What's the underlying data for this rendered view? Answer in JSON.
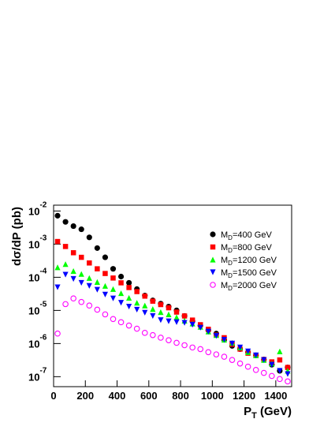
{
  "chart_data": {
    "type": "scatter",
    "ylabel": "dσ/dP (pb)",
    "xlabel": "PT (GeV)",
    "xlim": [
      0,
      1500
    ],
    "xticks": [
      0,
      200,
      400,
      600,
      800,
      1000,
      1200,
      1400
    ],
    "ylim": [
      5e-08,
      0.015
    ],
    "log_y": true,
    "yticks": [
      {
        "value": 0.01,
        "label": "10-2"
      },
      {
        "value": 0.001,
        "label": "10-3"
      },
      {
        "value": 0.0001,
        "label": "10-4"
      },
      {
        "value": 1e-05,
        "label": "10-5"
      },
      {
        "value": 1e-06,
        "label": "10-6"
      },
      {
        "value": 1e-07,
        "label": "10-7"
      }
    ],
    "legend": "upper right",
    "x": [
      25,
      75,
      125,
      175,
      225,
      275,
      325,
      375,
      425,
      475,
      525,
      575,
      625,
      675,
      725,
      775,
      825,
      875,
      925,
      975,
      1025,
      1075,
      1125,
      1175,
      1225,
      1275,
      1325,
      1375,
      1425,
      1475
    ],
    "series": [
      {
        "name": "MD=400 GeV",
        "color": "#000000",
        "marker": "circle",
        "values": [
          0.0072,
          0.0047,
          0.0035,
          0.0028,
          0.0016,
          0.00076,
          0.0004,
          0.00018,
          0.000105,
          6.8e-05,
          4.4e-05,
          2.8e-05,
          2e-05,
          1.6e-05,
          1.3e-05,
          1e-05,
          6.8e-06,
          4.7e-06,
          3.5e-06,
          2.5e-06,
          2e-06,
          1.3e-06,
          8.5e-07,
          6.8e-07,
          5.5e-07,
          4.4e-07,
          3.3e-07,
          2.3e-07,
          1.5e-07,
          1.9e-07
        ]
      },
      {
        "name": "MD=800 GeV",
        "color": "#ff0000",
        "marker": "square",
        "values": [
          0.0012,
          0.00085,
          0.00055,
          0.0004,
          0.00027,
          0.00018,
          0.00013,
          9.5e-05,
          6.8e-05,
          4.9e-05,
          3.7e-05,
          2.7e-05,
          1.9e-05,
          1.5e-05,
          1.2e-05,
          8.9e-06,
          6.8e-06,
          5.1e-06,
          3.7e-06,
          2.7e-06,
          1.8e-06,
          1.5e-06,
          9.5e-07,
          6.8e-07,
          5.1e-07,
          4.4e-07,
          3.3e-07,
          2.8e-07,
          3.2e-07,
          1.9e-07
        ]
      },
      {
        "name": "MD=1200 GeV",
        "color": "#00ff00",
        "marker": "triangle-up",
        "values": [
          0.0002,
          0.00025,
          0.000155,
          0.000126,
          9.5e-05,
          7.2e-05,
          5.5e-05,
          4.4e-05,
          3.3e-05,
          2.4e-05,
          1.7e-05,
          1.4e-05,
          1.1e-05,
          8.9e-06,
          7.6e-06,
          6.2e-06,
          4.9e-06,
          4e-06,
          3.2e-06,
          2.3e-06,
          1.8e-06,
          1.3e-06,
          1.05e-06,
          7.6e-07,
          5.5e-07,
          4.4e-07,
          3.2e-07,
          2.5e-07,
          5.8e-07,
          1.5e-07
        ]
      },
      {
        "name": "MD=1500 GeV",
        "color": "#0000ff",
        "marker": "triangle-down",
        "values": [
          5e-05,
          0.00012,
          8.9e-05,
          6.8e-05,
          5.5e-05,
          4.2e-05,
          3e-05,
          2.3e-05,
          1.7e-05,
          1.3e-05,
          1.05e-05,
          8.5e-06,
          6.8e-06,
          5.1e-06,
          4.7e-06,
          4.4e-06,
          4.2e-06,
          3.7e-06,
          3e-06,
          2.3e-06,
          1.7e-06,
          1.3e-06,
          1e-06,
          7.6e-07,
          5.8e-07,
          4.4e-07,
          3.2e-07,
          2.3e-07,
          1.5e-07,
          1.2e-07
        ]
      },
      {
        "name": "MD=2000 GeV",
        "color": "#ff00ff",
        "marker": "open-circle",
        "values": [
          2e-06,
          1.55e-05,
          2.3e-05,
          1.8e-05,
          1.4e-05,
          1.05e-05,
          7.6e-06,
          5.5e-06,
          4.4e-06,
          3.5e-06,
          2.8e-06,
          2.1e-06,
          1.8e-06,
          1.5e-06,
          1.26e-06,
          1.05e-06,
          8.9e-07,
          7.6e-07,
          6.8e-07,
          5.5e-07,
          4.7e-07,
          4e-07,
          3.2e-07,
          2.5e-07,
          2e-07,
          1.6e-07,
          1.3e-07,
          1.05e-07,
          8.5e-08,
          7.2e-08
        ]
      }
    ]
  }
}
